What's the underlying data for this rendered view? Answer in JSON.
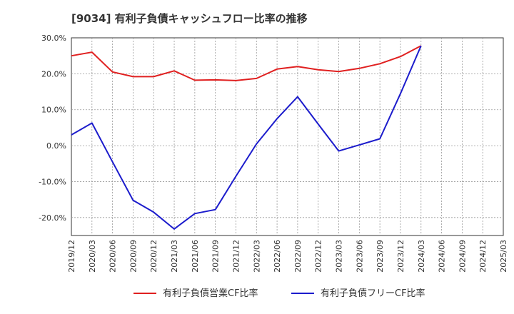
{
  "chart_data": {
    "type": "line",
    "title": "[9034]  有利子負債キャッシュフロー比率の推移",
    "x": [
      "2019/12",
      "2020/03",
      "2020/06",
      "2020/09",
      "2020/12",
      "2021/03",
      "2021/06",
      "2021/09",
      "2021/12",
      "2022/03",
      "2022/06",
      "2022/09",
      "2022/12",
      "2023/03",
      "2023/06",
      "2023/09",
      "2023/12",
      "2024/03",
      "2024/06",
      "2024/09",
      "2024/12",
      "2025/03"
    ],
    "ylim": [
      -25,
      30
    ],
    "yticks": [
      30,
      20,
      10,
      0,
      -10,
      -20
    ],
    "ytick_labels": [
      "30.0%",
      "20.0%",
      "10.0%",
      "0.0%",
      "-10.0%",
      "-20.0%"
    ],
    "grid": true,
    "legend_position": "bottom",
    "series": [
      {
        "name": "有利子負債営業CF比率",
        "color": "#e02020",
        "values": [
          25.0,
          26.0,
          20.5,
          19.2,
          19.2,
          20.8,
          18.2,
          18.3,
          18.1,
          18.7,
          21.3,
          22.0,
          21.1,
          20.6,
          21.5,
          22.8,
          24.8,
          27.8,
          null,
          null,
          null,
          null
        ]
      },
      {
        "name": "有利子負債フリーCF比率",
        "color": "#1c1ccc",
        "values": [
          3.0,
          6.3,
          -4.5,
          -15.2,
          -18.5,
          -23.2,
          -18.9,
          -17.8,
          -8.5,
          0.5,
          7.5,
          13.6,
          6.0,
          -1.5,
          0.2,
          1.9,
          14.5,
          27.8,
          null,
          null,
          null,
          null
        ]
      }
    ]
  }
}
